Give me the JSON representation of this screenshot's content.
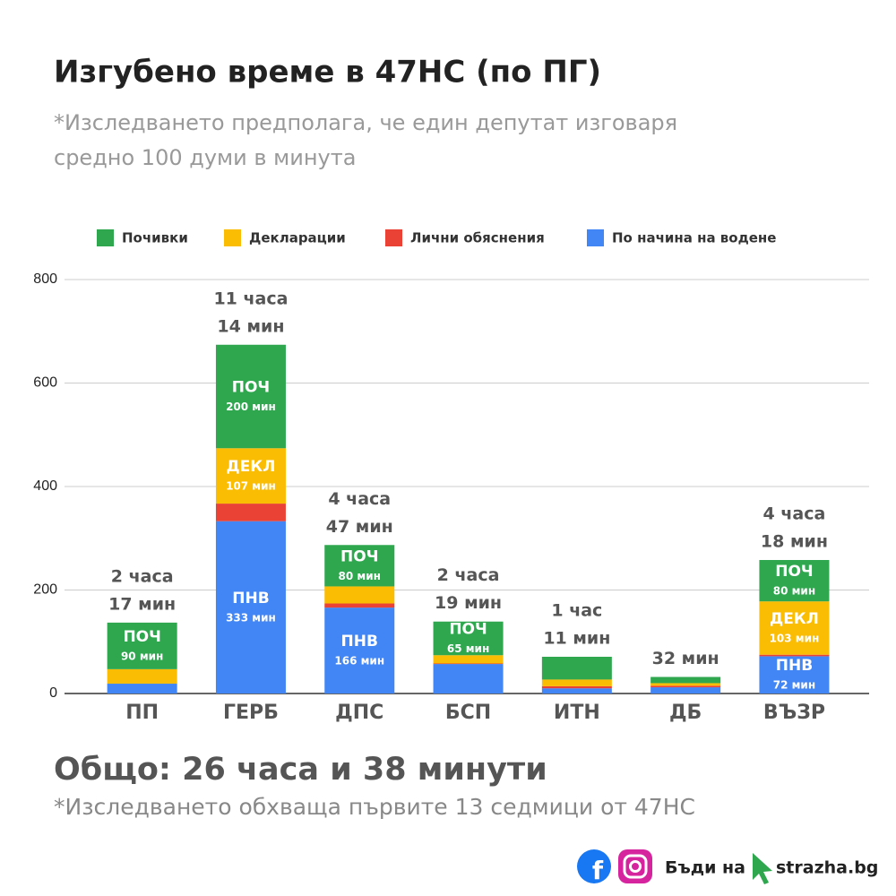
{
  "chart_data": {
    "type": "stacked_bar",
    "title": "Изгубено време в 47НС (по ПГ)",
    "subtitle": [
      "*Изследването предполага, че един депутат изговаря",
      "средно 100 думи в минута"
    ],
    "categories": [
      "ПП",
      "ГЕРБ",
      "ДПС",
      "БСП",
      "ИТН",
      "ДБ",
      "ВЪЗР"
    ],
    "series": [
      {
        "name": "Почивки",
        "abbr": "ПОЧ",
        "color": "#2ea74f",
        "values": [
          90,
          200,
          80,
          65,
          44,
          12,
          80
        ],
        "value_labels": [
          "90 мин",
          "200 мин",
          "80 мин",
          "65 мин",
          null,
          null,
          "80 мин"
        ]
      },
      {
        "name": "Декларации",
        "abbr": "ДЕКЛ",
        "color": "#fbbc04",
        "values": [
          28,
          107,
          33,
          16,
          13,
          5,
          103
        ],
        "value_labels": [
          null,
          "107 мин",
          null,
          null,
          null,
          null,
          "103 мин"
        ]
      },
      {
        "name": "Лични обяснения",
        "color": "#ea4335",
        "values": [
          0,
          34,
          8,
          1,
          4,
          3,
          3
        ]
      },
      {
        "name": "По начина на водене",
        "abbr": "ПНВ",
        "color": "#4285f4",
        "values": [
          19,
          333,
          166,
          57,
          10,
          12,
          72
        ],
        "value_labels": [
          null,
          "333 мин",
          "166 мин",
          null,
          null,
          null,
          "72 мин"
        ]
      }
    ],
    "total_labels": [
      [
        "2 часа",
        "17 мин"
      ],
      [
        "11 часа",
        "14 мин"
      ],
      [
        "4 часа",
        "47 мин"
      ],
      [
        "2 часа",
        "19 мин"
      ],
      [
        "1 час",
        "11 мин"
      ],
      [
        "32 мин"
      ],
      [
        "4 часа",
        "18 мин"
      ]
    ],
    "ylim": [
      0,
      800
    ],
    "yticks": [
      0,
      200,
      400,
      600,
      800
    ],
    "grid": true
  },
  "footer": {
    "total": "Общо: 26 часа и 38 минути",
    "note": "*Изследването обхваща първите 13 седмици от 47НС",
    "brand": "Бъди на",
    "site": "strazha.bg"
  }
}
